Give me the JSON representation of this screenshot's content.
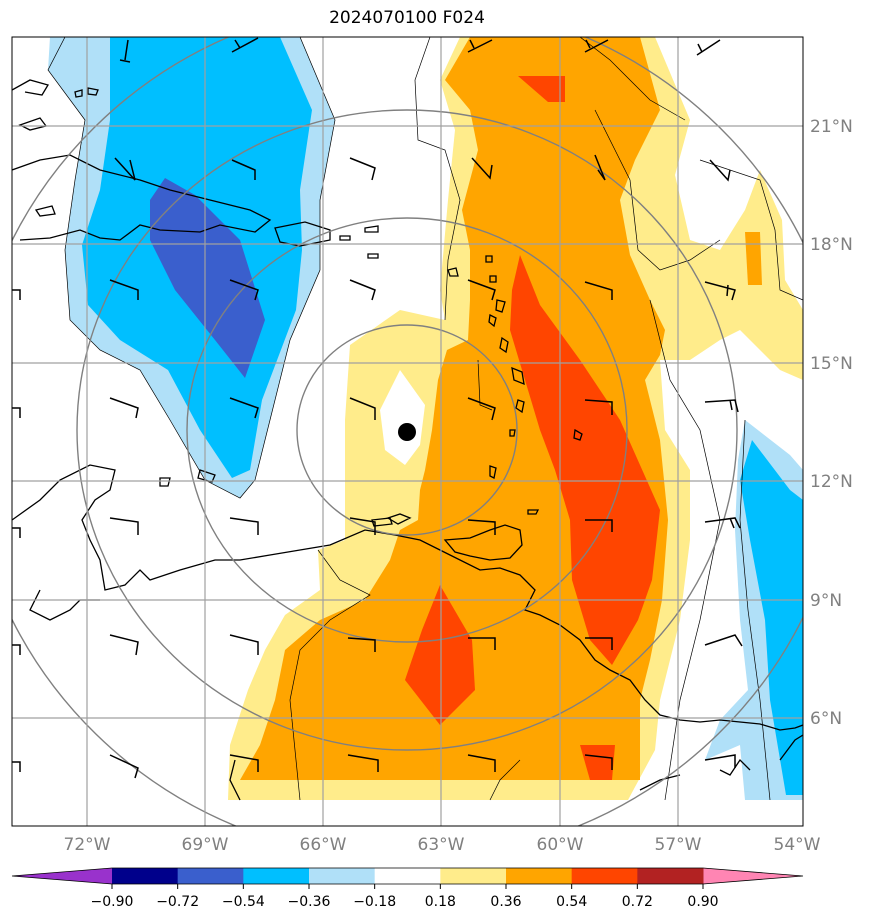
{
  "title": "2024070100 F024",
  "lat_labels": [
    "21°N",
    "18°N",
    "15°N",
    "12°N",
    "9°N",
    "6°N"
  ],
  "lon_labels": [
    "72°W",
    "69°W",
    "66°W",
    "63°W",
    "60°W",
    "57°W",
    "54°W"
  ],
  "colorbar": {
    "ticks": [
      "−0.90",
      "−0.72",
      "−0.54",
      "−0.36",
      "−0.18",
      "0.18",
      "0.36",
      "0.54",
      "0.72",
      "0.90"
    ],
    "colors": [
      "#9932cc",
      "#00008b",
      "#3a5fcd",
      "#00bfff",
      "#b0e0f8",
      "#ffffff",
      "#ffec8b",
      "#ffa500",
      "#ff4500",
      "#b22222",
      "#ff85b3"
    ]
  },
  "colors": {
    "grid": "#a0a0a0",
    "range_rings": "#808080",
    "coast": "#000000",
    "storm_center": "#000000"
  }
}
